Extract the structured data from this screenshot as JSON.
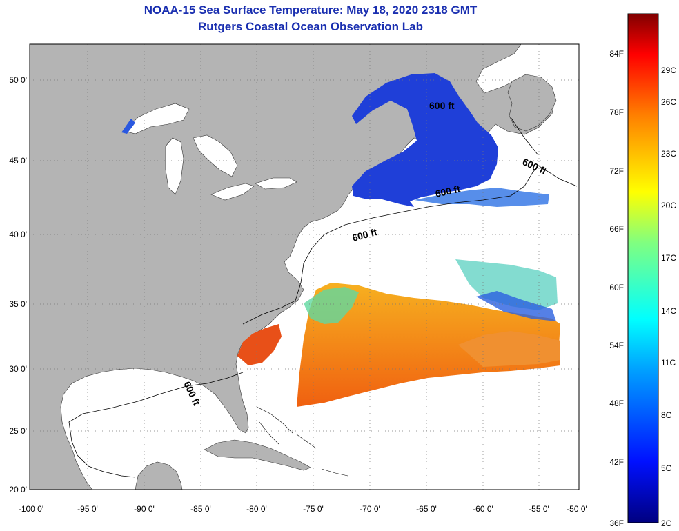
{
  "title": "NOAA-15 Sea Surface Temperature:  May 18, 2020 2318 GMT",
  "subtitle": "Rutgers Coastal Ocean Observation Lab",
  "lat_ticks": [
    "50 0'",
    "45 0'",
    "40 0'",
    "35 0'",
    "30 0'",
    "25 0'",
    "20 0'"
  ],
  "lon_ticks": [
    "-100 0'",
    "-95 0'",
    "-90 0'",
    "-85 0'",
    "-80 0'",
    "-75 0'",
    "-70 0'",
    "-65 0'",
    "-60 0'",
    "-55 0'",
    "-50 0'"
  ],
  "contour_labels": [
    "600 ft",
    "600 ft",
    "600 ft",
    "600 ft",
    "600 ft"
  ],
  "colorbar": {
    "fahrenheit": [
      "84F",
      "78F",
      "72F",
      "66F",
      "60F",
      "54F",
      "48F",
      "42F",
      "36F"
    ],
    "celsius": [
      "29C",
      "26C",
      "23C",
      "20C",
      "17C",
      "14C",
      "11C",
      "8C",
      "5C",
      "2C"
    ],
    "range_f": [
      36,
      88
    ]
  },
  "colors": {
    "land": "#b4b4b4",
    "ocean": "#ffffff",
    "title": "#1a2fb0",
    "cold": "#1f3fd8",
    "warm": "#f07820"
  }
}
